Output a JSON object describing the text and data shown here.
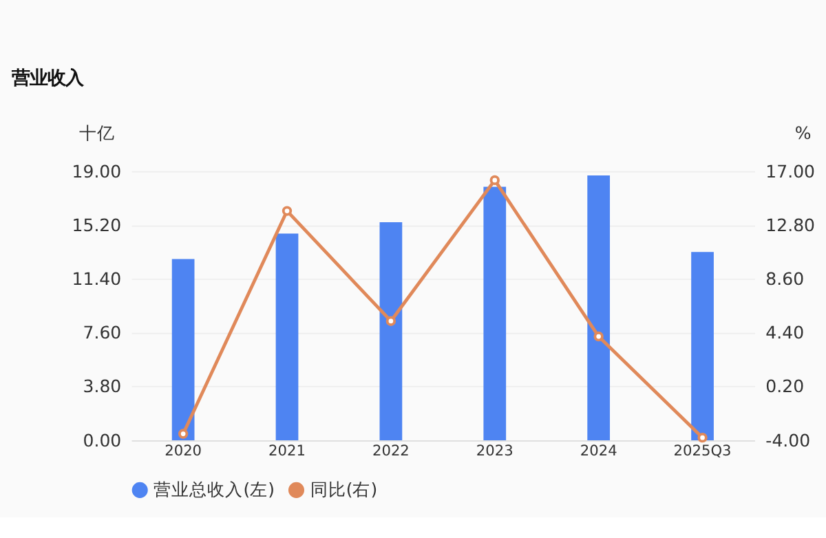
{
  "chart_data": {
    "type": "bar",
    "title": "营业收入",
    "ylabel": "十亿",
    "y2label": "%",
    "categories": [
      "2020",
      "2021",
      "2022",
      "2023",
      "2024",
      "2025Q3"
    ],
    "series": [
      {
        "name": "营业总收入(左)",
        "color": "#4e84f2",
        "values": [
          12.8,
          14.6,
          15.4,
          17.9,
          18.7,
          13.3
        ]
      },
      {
        "name": "同比(右)",
        "type": "line",
        "axis": "y2",
        "color": "#e0895a",
        "values": [
          -3.5,
          13.9,
          5.3,
          16.3,
          4.1,
          -3.8
        ]
      }
    ],
    "ylim": [
      0,
      19
    ],
    "yticks": [
      {
        "value": 0,
        "label": "0.00"
      },
      {
        "value": 3.8,
        "label": "3.80"
      },
      {
        "value": 7.6,
        "label": "7.60"
      },
      {
        "value": 11.4,
        "label": "11.40"
      },
      {
        "value": 15.2,
        "label": "15.20"
      },
      {
        "value": 19,
        "label": "19.00"
      }
    ],
    "y2lim": [
      -4,
      17
    ],
    "y2ticks": [
      {
        "value": -4,
        "label": "-4.00"
      },
      {
        "value": 0.2,
        "label": "0.20"
      },
      {
        "value": 4.4,
        "label": "4.40"
      },
      {
        "value": 8.6,
        "label": "8.60"
      },
      {
        "value": 12.8,
        "label": "12.80"
      },
      {
        "value": 17,
        "label": "17.00"
      }
    ],
    "grid": "y",
    "legend": "bottom",
    "marker": "circle"
  }
}
